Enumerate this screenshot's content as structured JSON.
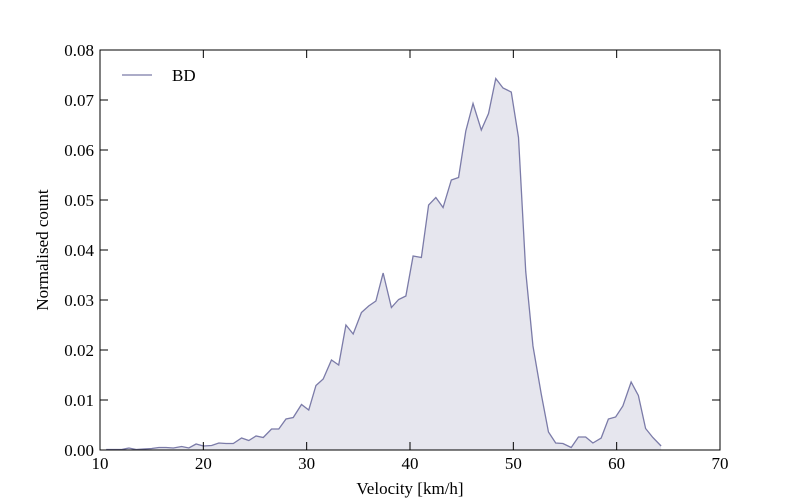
{
  "chart_data": {
    "type": "area",
    "xlabel": "Velocity [km/h]",
    "ylabel": "Normalised count",
    "xlim": [
      10,
      70
    ],
    "xticks": [
      10,
      20,
      30,
      40,
      50,
      60,
      70
    ],
    "ylim": [
      0,
      0.08
    ],
    "yticks": [
      {
        "value": 0,
        "label": "0.00"
      },
      0.01,
      0.02,
      0.03,
      0.04,
      0.05,
      0.06,
      0.07,
      0.08
    ],
    "legend": "upper left",
    "grid": false,
    "series": [
      {
        "name": "BD",
        "color": "#7b7ba8",
        "fill_color": "#e6e6ee",
        "x": [
          10.6,
          11.3,
          12.1,
          12.8,
          13.5,
          14.2,
          15.0,
          15.7,
          16.4,
          17.1,
          17.9,
          18.6,
          19.3,
          20.0,
          20.8,
          21.5,
          22.2,
          22.9,
          23.7,
          24.4,
          25.1,
          25.8,
          26.6,
          27.3,
          28.0,
          28.7,
          29.5,
          30.2,
          30.9,
          31.6,
          32.4,
          33.1,
          33.8,
          34.5,
          35.3,
          36.0,
          36.7,
          37.4,
          38.2,
          38.9,
          39.6,
          40.3,
          41.1,
          41.8,
          42.5,
          43.2,
          44.0,
          44.7,
          45.4,
          46.1,
          46.9,
          47.6,
          48.3,
          49.0,
          49.8,
          50.5,
          51.2,
          51.9,
          52.7,
          53.4,
          54.1,
          54.8,
          55.6,
          56.3,
          57.0,
          57.7,
          58.5,
          59.2,
          59.9,
          60.6,
          61.4,
          62.1,
          62.8,
          63.5,
          64.3
        ],
        "values": [
          0.0001,
          0.0001,
          0.0001,
          0.0004,
          0.0001,
          0.0002,
          0.0003,
          0.0005,
          0.0005,
          0.0004,
          0.0007,
          0.0004,
          0.0012,
          0.0008,
          0.0009,
          0.0014,
          0.0013,
          0.0013,
          0.0024,
          0.0019,
          0.0028,
          0.0025,
          0.0042,
          0.0042,
          0.0062,
          0.0065,
          0.0091,
          0.008,
          0.0129,
          0.0142,
          0.018,
          0.017,
          0.025,
          0.0232,
          0.0275,
          0.0288,
          0.0298,
          0.0354,
          0.0285,
          0.0301,
          0.0308,
          0.0388,
          0.0385,
          0.049,
          0.0505,
          0.0485,
          0.054,
          0.0545,
          0.0638,
          0.0693,
          0.064,
          0.0673,
          0.0743,
          0.0724,
          0.0716,
          0.0625,
          0.0357,
          0.0208,
          0.0112,
          0.0036,
          0.0014,
          0.0013,
          0.0005,
          0.0026,
          0.0026,
          0.0014,
          0.0024,
          0.0062,
          0.0066,
          0.0088,
          0.0136,
          0.0109,
          0.0043,
          0.0025,
          0.0008
        ]
      }
    ]
  }
}
